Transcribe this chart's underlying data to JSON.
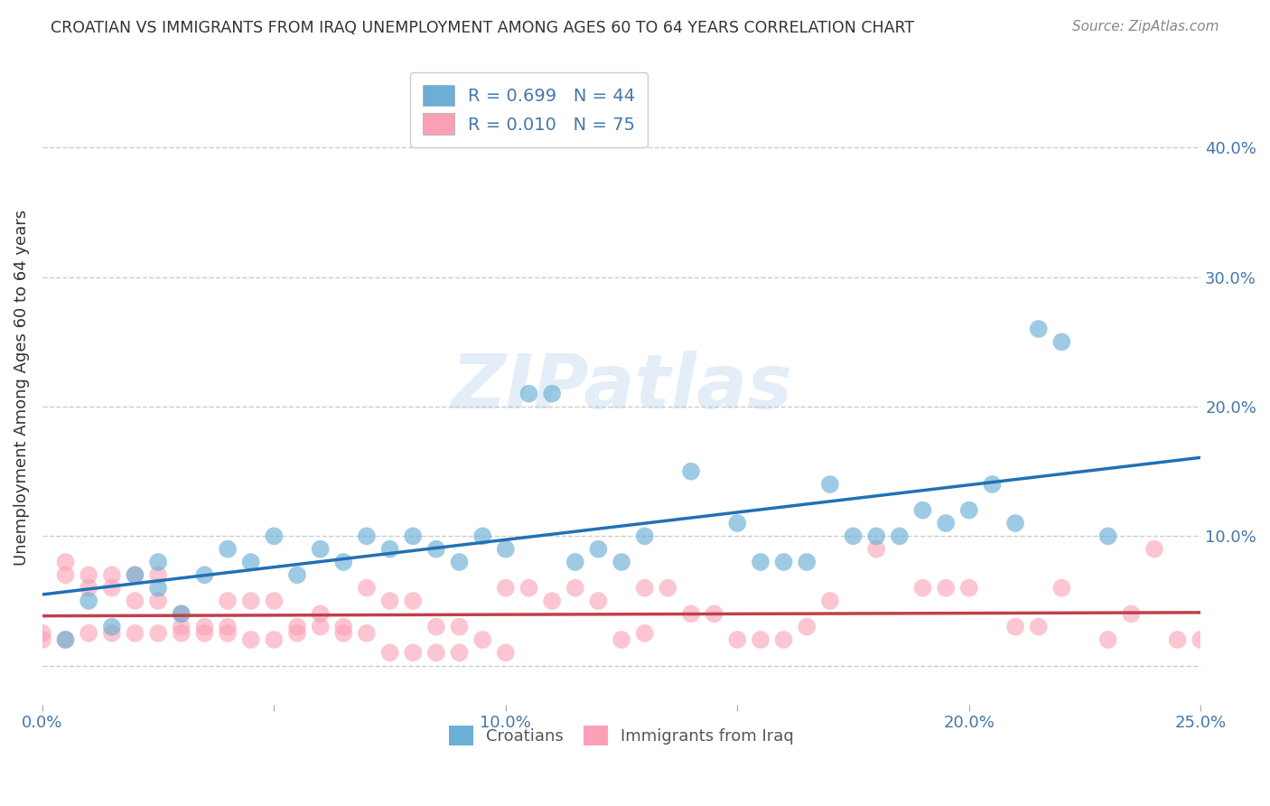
{
  "title": "CROATIAN VS IMMIGRANTS FROM IRAQ UNEMPLOYMENT AMONG AGES 60 TO 64 YEARS CORRELATION CHART",
  "source": "Source: ZipAtlas.com",
  "ylabel": "Unemployment Among Ages 60 to 64 years",
  "xlim": [
    0.0,
    0.25
  ],
  "ylim": [
    -0.03,
    0.46
  ],
  "xticks": [
    0.0,
    0.05,
    0.1,
    0.15,
    0.2,
    0.25
  ],
  "yticks_right": [
    0.0,
    0.1,
    0.2,
    0.3,
    0.4
  ],
  "ytick_labels_right": [
    "",
    "10.0%",
    "20.0%",
    "30.0%",
    "40.0%"
  ],
  "xtick_labels": [
    "0.0%",
    "",
    "10.0%",
    "",
    "20.0%",
    "25.0%"
  ],
  "blue_color": "#6baed6",
  "pink_color": "#fa9fb5",
  "blue_line_color": "#2171b5",
  "pink_line_color": "#c0404a",
  "legend_blue_label": "R = 0.699   N = 44",
  "legend_pink_label": "R = 0.010   N = 75",
  "croatians_label": "Croatians",
  "iraq_label": "Immigrants from Iraq",
  "blue_x": [
    0.005,
    0.01,
    0.015,
    0.02,
    0.025,
    0.025,
    0.03,
    0.035,
    0.04,
    0.045,
    0.05,
    0.055,
    0.06,
    0.065,
    0.07,
    0.075,
    0.08,
    0.085,
    0.09,
    0.095,
    0.1,
    0.105,
    0.11,
    0.115,
    0.12,
    0.125,
    0.13,
    0.14,
    0.15,
    0.155,
    0.16,
    0.165,
    0.17,
    0.175,
    0.18,
    0.185,
    0.19,
    0.195,
    0.2,
    0.205,
    0.21,
    0.215,
    0.22,
    0.23
  ],
  "blue_y": [
    0.02,
    0.05,
    0.03,
    0.07,
    0.08,
    0.06,
    0.04,
    0.07,
    0.09,
    0.08,
    0.1,
    0.07,
    0.09,
    0.08,
    0.1,
    0.09,
    0.1,
    0.09,
    0.08,
    0.1,
    0.09,
    0.21,
    0.21,
    0.08,
    0.09,
    0.08,
    0.1,
    0.15,
    0.11,
    0.08,
    0.08,
    0.08,
    0.14,
    0.1,
    0.1,
    0.1,
    0.12,
    0.11,
    0.12,
    0.14,
    0.11,
    0.26,
    0.25,
    0.1
  ],
  "pink_x": [
    0.0,
    0.005,
    0.005,
    0.01,
    0.01,
    0.015,
    0.015,
    0.02,
    0.02,
    0.025,
    0.025,
    0.03,
    0.03,
    0.035,
    0.04,
    0.04,
    0.045,
    0.05,
    0.055,
    0.06,
    0.065,
    0.07,
    0.075,
    0.08,
    0.085,
    0.09,
    0.095,
    0.1,
    0.105,
    0.11,
    0.115,
    0.12,
    0.125,
    0.13,
    0.135,
    0.14,
    0.145,
    0.15,
    0.155,
    0.16,
    0.165,
    0.17,
    0.18,
    0.19,
    0.195,
    0.2,
    0.21,
    0.215,
    0.22,
    0.23,
    0.235,
    0.24,
    0.245,
    0.25,
    0.0,
    0.005,
    0.01,
    0.015,
    0.02,
    0.025,
    0.03,
    0.035,
    0.04,
    0.045,
    0.05,
    0.055,
    0.06,
    0.065,
    0.07,
    0.075,
    0.08,
    0.085,
    0.09,
    0.1,
    0.13
  ],
  "pink_y": [
    0.025,
    0.07,
    0.08,
    0.06,
    0.07,
    0.07,
    0.06,
    0.05,
    0.07,
    0.07,
    0.05,
    0.03,
    0.04,
    0.03,
    0.03,
    0.05,
    0.05,
    0.05,
    0.03,
    0.03,
    0.03,
    0.06,
    0.05,
    0.05,
    0.03,
    0.03,
    0.02,
    0.06,
    0.06,
    0.05,
    0.06,
    0.05,
    0.02,
    0.06,
    0.06,
    0.04,
    0.04,
    0.02,
    0.02,
    0.02,
    0.03,
    0.05,
    0.09,
    0.06,
    0.06,
    0.06,
    0.03,
    0.03,
    0.06,
    0.02,
    0.04,
    0.09,
    0.02,
    0.02,
    0.02,
    0.02,
    0.025,
    0.025,
    0.025,
    0.025,
    0.025,
    0.025,
    0.025,
    0.02,
    0.02,
    0.025,
    0.04,
    0.025,
    0.025,
    0.01,
    0.01,
    0.01,
    0.01,
    0.01,
    0.025
  ],
  "watermark": "ZIPatlas",
  "grid_color": "#cccccc",
  "background_color": "#ffffff"
}
